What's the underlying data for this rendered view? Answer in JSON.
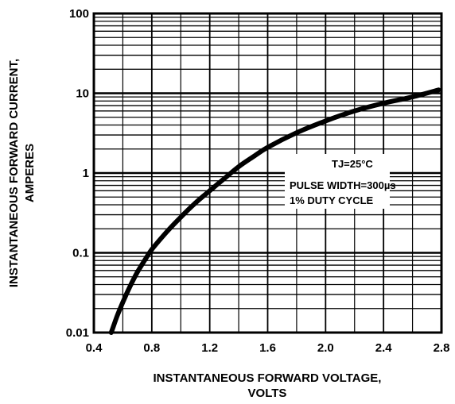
{
  "chart_data": {
    "type": "line",
    "xlabel": [
      "INSTANTANEOUS FORWARD VOLTAGE,",
      "VOLTS"
    ],
    "ylabel": [
      "INSTANTANEOUS FORWARD CURRENT,",
      "AMPERES"
    ],
    "xlim": [
      0.4,
      2.8
    ],
    "ylim": [
      0.01,
      100
    ],
    "yscale": "log",
    "grid": true,
    "x_ticks": [
      "0.4",
      "0.8",
      "1.2",
      "1.6",
      "2.0",
      "2.4",
      "2.8"
    ],
    "x_tick_values": [
      0.4,
      0.8,
      1.2,
      1.6,
      2.0,
      2.4,
      2.8
    ],
    "y_ticks": [
      "0.01",
      "0.1",
      "1",
      "10",
      "100"
    ],
    "y_tick_values": [
      0.01,
      0.1,
      1,
      10,
      100
    ],
    "series": [
      {
        "x": [
          0.52,
          0.56,
          0.6,
          0.65,
          0.7,
          0.75,
          0.8,
          0.9,
          1.0,
          1.1,
          1.2,
          1.3,
          1.4,
          1.5,
          1.6,
          1.8,
          2.0,
          2.2,
          2.4,
          2.6,
          2.78
        ],
        "y": [
          0.01,
          0.016,
          0.024,
          0.038,
          0.057,
          0.08,
          0.11,
          0.18,
          0.28,
          0.42,
          0.6,
          0.85,
          1.2,
          1.6,
          2.1,
          3.2,
          4.5,
          6.0,
          7.5,
          9.0,
          11.0
        ]
      }
    ],
    "annotations": [
      "TJ=25°C",
      "PULSE WIDTH=300µs",
      "1% DUTY CYCLE"
    ],
    "colors": {
      "line": "#000000",
      "grid": "#000000",
      "background": "#ffffff"
    }
  }
}
